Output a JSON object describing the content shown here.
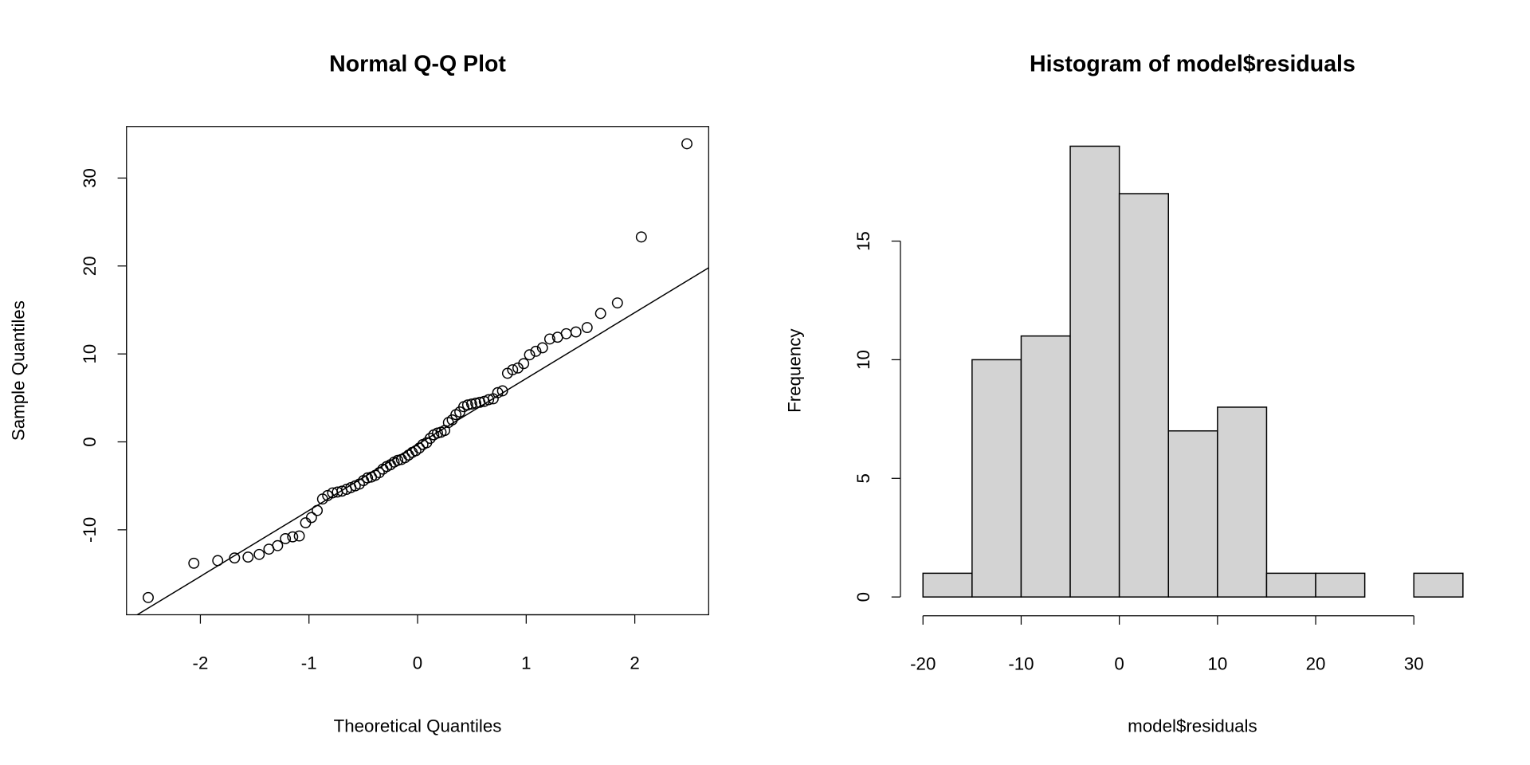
{
  "chart_data": [
    {
      "type": "scatter",
      "title": "Normal Q-Q Plot",
      "x_label": "Theoretical Quantiles",
      "y_label": "Sample Quantiles",
      "x": [
        -2.48,
        -2.06,
        -1.84,
        -1.685,
        -1.561,
        -1.458,
        -1.369,
        -1.289,
        -1.217,
        -1.15,
        -1.089,
        -1.031,
        -0.977,
        -0.924,
        -0.875,
        -0.828,
        -0.782,
        -0.738,
        -0.696,
        -0.654,
        -0.614,
        -0.574,
        -0.536,
        -0.498,
        -0.461,
        -0.425,
        -0.389,
        -0.353,
        -0.319,
        -0.284,
        -0.25,
        -0.216,
        -0.183,
        -0.149,
        -0.116,
        -0.083,
        -0.049,
        -0.016,
        0.016,
        0.049,
        0.083,
        0.116,
        0.149,
        0.183,
        0.216,
        0.25,
        0.284,
        0.319,
        0.353,
        0.389,
        0.425,
        0.461,
        0.498,
        0.536,
        0.574,
        0.614,
        0.654,
        0.696,
        0.738,
        0.782,
        0.828,
        0.875,
        0.924,
        0.977,
        1.031,
        1.089,
        1.15,
        1.217,
        1.289,
        1.369,
        1.458,
        1.561,
        1.685,
        1.84,
        2.06,
        2.48
      ],
      "values": [
        -17.7,
        -13.8,
        -13.5,
        -13.2,
        -13.1,
        -12.8,
        -12.2,
        -11.8,
        -11.0,
        -10.8,
        -10.7,
        -9.2,
        -8.6,
        -7.8,
        -6.5,
        -6.1,
        -5.8,
        -5.7,
        -5.6,
        -5.4,
        -5.2,
        -5.0,
        -4.8,
        -4.4,
        -4.1,
        -4.0,
        -3.8,
        -3.5,
        -3.1,
        -2.8,
        -2.6,
        -2.3,
        -2.1,
        -2.0,
        -1.8,
        -1.5,
        -1.2,
        -1.0,
        -0.7,
        -0.3,
        -0.1,
        0.4,
        0.8,
        1.0,
        1.1,
        1.3,
        2.2,
        2.5,
        3.1,
        3.4,
        4.0,
        4.2,
        4.3,
        4.4,
        4.5,
        4.6,
        4.8,
        4.9,
        5.6,
        5.8,
        7.8,
        8.2,
        8.4,
        8.9,
        9.9,
        10.3,
        10.7,
        11.7,
        11.9,
        12.3,
        12.5,
        13.0,
        14.6,
        15.8,
        23.3,
        33.9
      ],
      "reference_line": {
        "x": [
          -2.68,
          2.68
        ],
        "y": [
          -20.4,
          19.8
        ]
      },
      "xlim": [
        -2.68,
        2.68
      ],
      "ylim": [
        -19.66,
        35.86
      ],
      "xticks": [
        -2,
        -1,
        0,
        1,
        2
      ],
      "yticks": [
        -10,
        0,
        10,
        20,
        30
      ],
      "color": "#000000"
    },
    {
      "type": "histogram",
      "title": "Histogram of model$residuals",
      "x_label": "model$residuals",
      "y_label": "Frequency",
      "bins": [
        -20,
        -15,
        -10,
        -5,
        0,
        5,
        10,
        15,
        20,
        25,
        30,
        35
      ],
      "values": [
        1,
        10,
        11,
        19,
        17,
        7,
        8,
        1,
        1,
        0,
        1
      ],
      "xlim": [
        -22.3,
        37.2
      ],
      "ylim": [
        -0.75,
        19.83
      ],
      "xticks": [
        -20,
        -10,
        0,
        10,
        20,
        30
      ],
      "yticks": [
        0,
        5,
        10,
        15
      ],
      "color": "#d3d3d3"
    }
  ]
}
